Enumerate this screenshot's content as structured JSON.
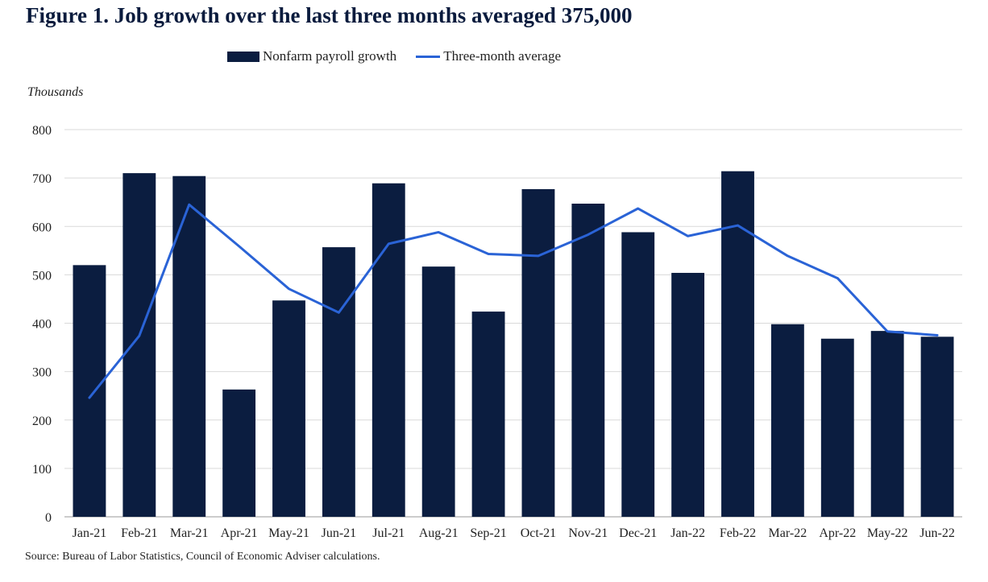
{
  "chart_data": {
    "type": "bar",
    "title": "Figure 1. Job growth over the last three months averaged 375,000",
    "ylabel": "Thousands",
    "ylim": [
      0,
      800
    ],
    "yticks": [
      0,
      100,
      200,
      300,
      400,
      500,
      600,
      700,
      800
    ],
    "grid": true,
    "legend_position": "top",
    "categories": [
      "Jan-21",
      "Feb-21",
      "Mar-21",
      "Apr-21",
      "May-21",
      "Jun-21",
      "Jul-21",
      "Aug-21",
      "Sep-21",
      "Oct-21",
      "Nov-21",
      "Dec-21",
      "Jan-22",
      "Feb-22",
      "Mar-22",
      "Apr-22",
      "May-22",
      "Jun-22"
    ],
    "series": [
      {
        "name": "Nonfarm payroll growth",
        "type": "bar",
        "color": "#0b1d40",
        "values": [
          520,
          710,
          704,
          263,
          447,
          557,
          689,
          517,
          424,
          677,
          647,
          588,
          504,
          714,
          398,
          368,
          384,
          372
        ]
      },
      {
        "name": "Three-month average",
        "type": "line",
        "color": "#2a63d6",
        "values": [
          246,
          374,
          645,
          559,
          471,
          422,
          564,
          588,
          543,
          539,
          583,
          637,
          580,
          602,
          539,
          493,
          383,
          375
        ]
      }
    ],
    "source": "Source: Bureau of Labor Statistics, Council of Economic Adviser calculations."
  }
}
